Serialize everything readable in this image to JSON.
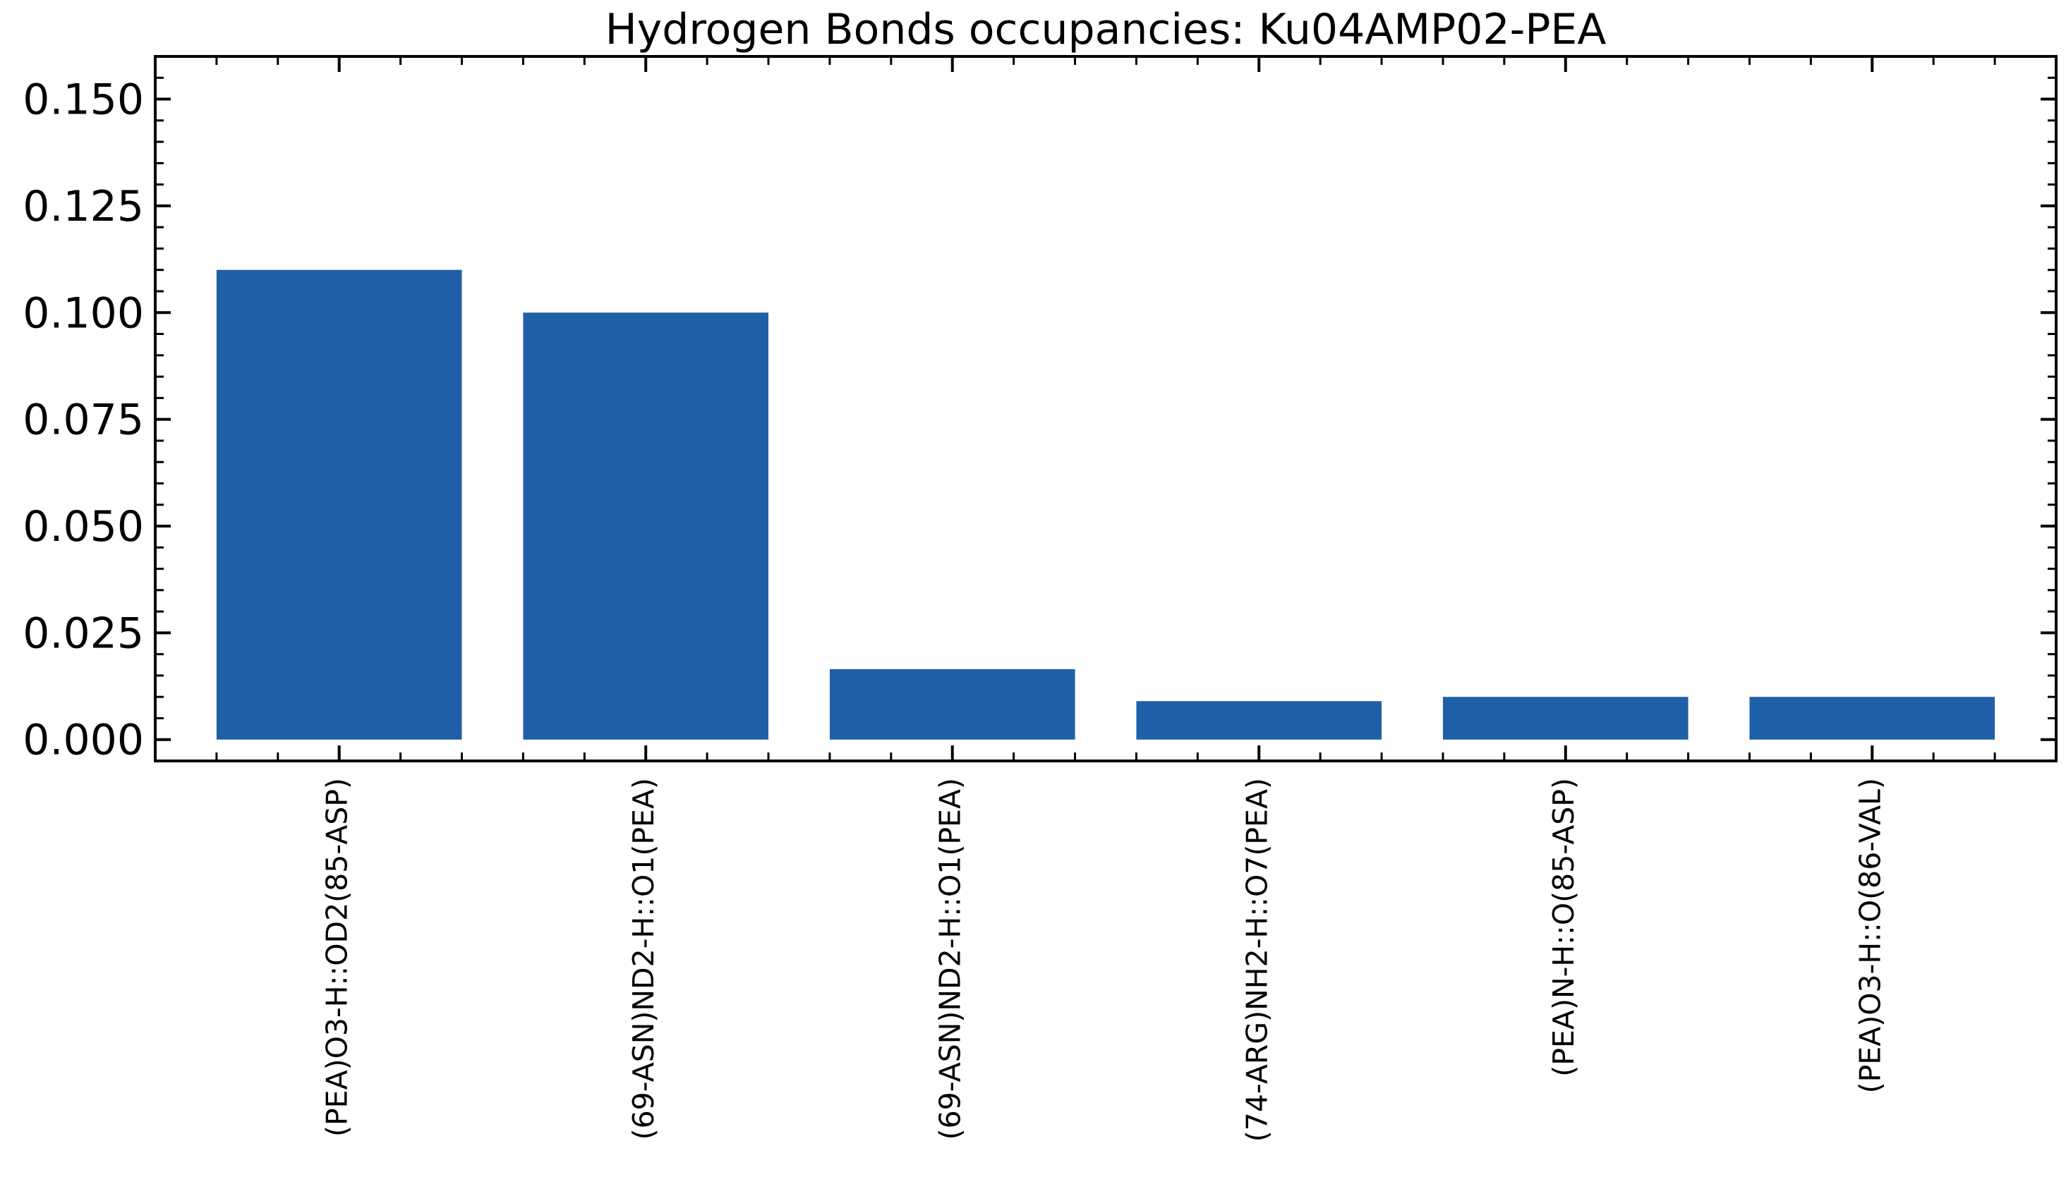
{
  "chart_data": {
    "type": "bar",
    "title": "Hydrogen Bonds occupancies: Ku04AMP02-PEA",
    "xlabel": "",
    "ylabel": "",
    "categories": [
      "(PEA)O3-H::OD2(85-ASP)",
      "(69-ASN)ND2-H::O1(PEA)",
      "(69-ASN)ND2-H::O1(PEA)",
      "(74-ARG)NH2-H::O7(PEA)",
      "(PEA)N-H::O(85-ASP)",
      "(PEA)O3-H::O(86-VAL)"
    ],
    "values": [
      0.11,
      0.1,
      0.0165,
      0.009,
      0.01,
      0.01
    ],
    "ylim": [
      -0.005,
      0.16
    ],
    "yticks": [
      0.0,
      0.025,
      0.05,
      0.075,
      0.1,
      0.125,
      0.15
    ],
    "ytick_labels": [
      "0.000",
      "0.025",
      "0.050",
      "0.075",
      "0.100",
      "0.125",
      "0.150"
    ],
    "bar_color": "#1f5fa8",
    "grid": false,
    "legend": "none"
  }
}
